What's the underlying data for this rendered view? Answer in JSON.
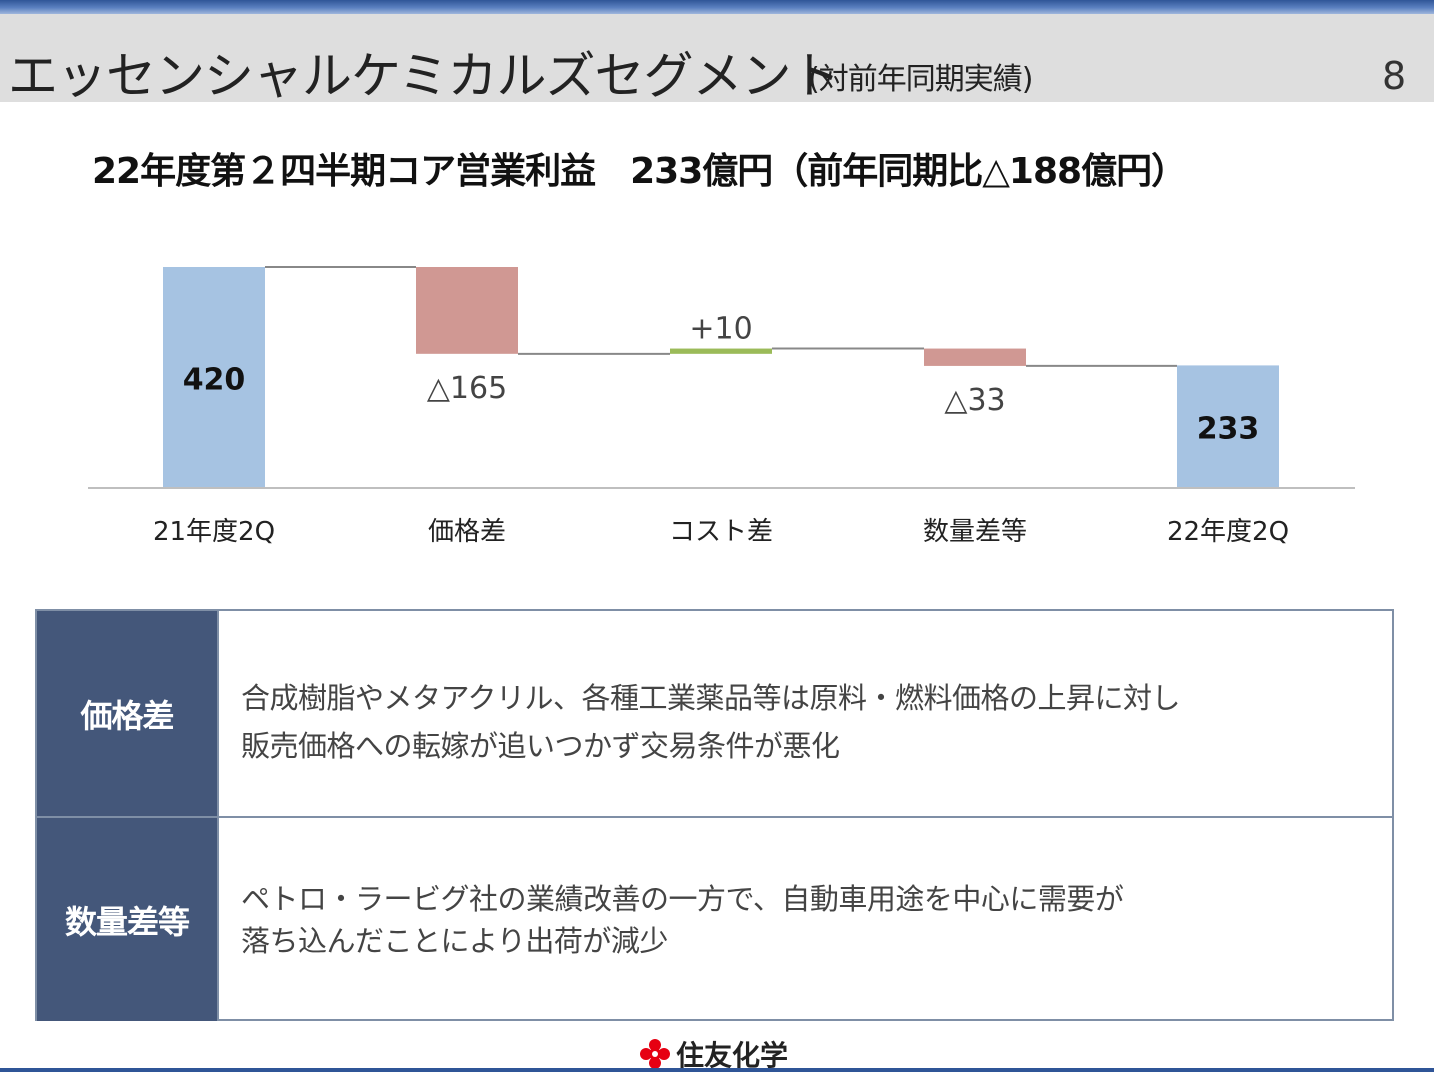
{
  "header": {
    "title": "エッセンシャルケミカルズセグメント",
    "subtitle": "(対前年同期実績)",
    "page_number": "8"
  },
  "headline": "22年度第２四半期コア営業利益　233億円（前年同期比△188億円）",
  "chart_data": {
    "type": "waterfall",
    "categories": [
      "21年度2Q",
      "価格差",
      "コスト差",
      "数量差等",
      "22年度2Q"
    ],
    "values": [
      420,
      -165,
      10,
      -33,
      233
    ],
    "kinds": [
      "total",
      "delta",
      "delta",
      "delta",
      "total"
    ],
    "labels": [
      "420",
      "△165",
      "+10",
      "△33",
      "233"
    ],
    "colors": {
      "total": "#a6c3e2",
      "negative": "#d09893",
      "positive": "#9bbb59"
    }
  },
  "table": {
    "rows": [
      {
        "head": "価格差",
        "lines": [
          "合成樹脂やメタアクリル、各種工業薬品等は原料・燃料価格の上昇に対し",
          "販売価格への転嫁が追いつかず交易条件が悪化"
        ]
      },
      {
        "head": "数量差等",
        "lines": [
          "ペトロ・ラービグ社の業績改善の一方で、自動車用途を中心に需要が",
          "落ち込んだことにより出荷が減少"
        ]
      }
    ]
  },
  "footer": {
    "company": "住友化学",
    "logo_icon": "sumitomo-logo-icon"
  }
}
